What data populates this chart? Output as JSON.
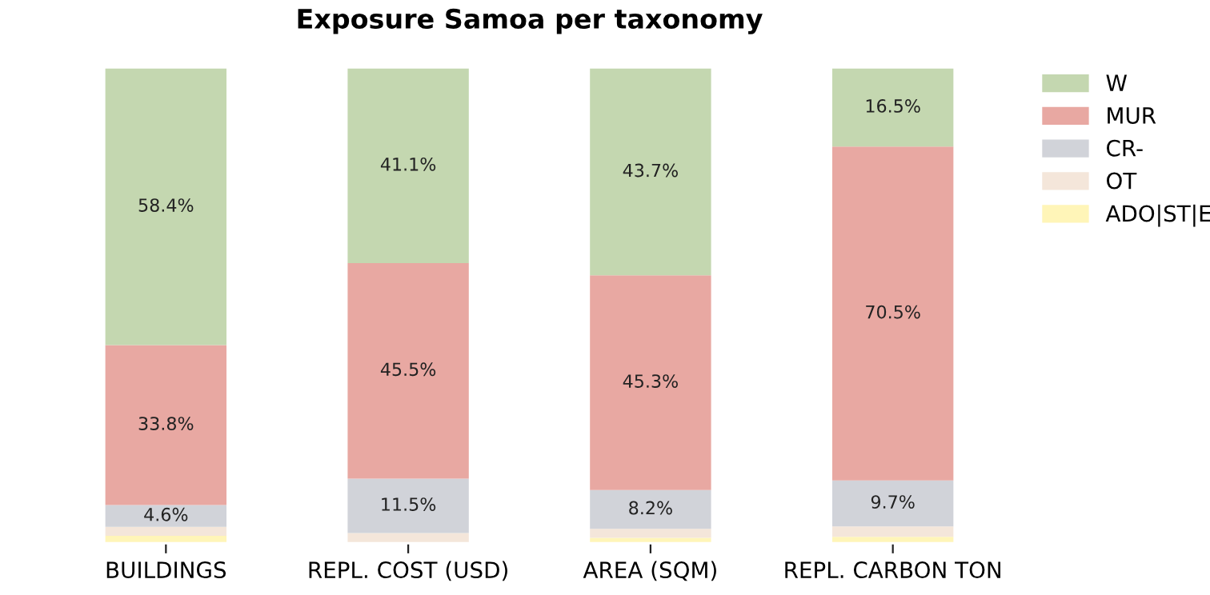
{
  "chart_data": {
    "type": "bar",
    "title": "Exposure Samoa per taxonomy",
    "stacked": true,
    "legend": "top right",
    "categories": [
      "BUILDINGS",
      "REPL. COST (USD)",
      "AREA (SQM)",
      "REPL. CARBON TON"
    ],
    "series": [
      {
        "name": "ADO|ST|E",
        "color": "#fff5b8",
        "values": [
          1.3,
          null,
          0.9,
          1.1
        ],
        "value_labels": [
          null,
          null,
          null,
          null
        ]
      },
      {
        "name": "OT",
        "color": "#f4e6da",
        "values": [
          1.9,
          1.9,
          1.9,
          2.2
        ],
        "value_labels": [
          null,
          null,
          null,
          null
        ]
      },
      {
        "name": "CR-",
        "color": "#d1d3d9",
        "values": [
          4.6,
          11.5,
          8.2,
          9.7
        ],
        "value_labels": [
          "4.6%",
          "11.5%",
          "8.2%",
          "9.7%"
        ]
      },
      {
        "name": "MUR",
        "color": "#e8a8a2",
        "values": [
          33.8,
          45.5,
          45.3,
          70.5
        ],
        "value_labels": [
          "33.8%",
          "45.5%",
          "45.3%",
          "70.5%"
        ]
      },
      {
        "name": "W",
        "color": "#c4d7b0",
        "values": [
          58.4,
          41.1,
          43.7,
          16.5
        ],
        "value_labels": [
          "58.4%",
          "41.1%",
          "43.7%",
          "16.5%"
        ]
      }
    ]
  }
}
